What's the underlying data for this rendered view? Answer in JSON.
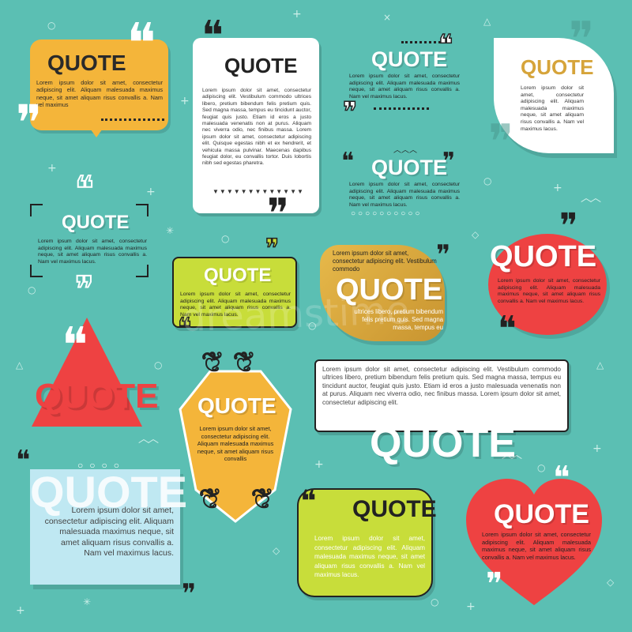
{
  "colors": {
    "background": "#5bbfb3",
    "orange": "#f4b53a",
    "lime": "#c8dd3a",
    "red": "#ee4242",
    "gold": "#d9a93a",
    "white": "#ffffff",
    "light_blue": "#bfe8f2",
    "dark": "#262626"
  },
  "watermark": "dreamstime",
  "boxes": [
    {
      "id": "orange-speech",
      "title": "QUOTE",
      "body": "Lorem ipsum dolor sit amet, consectetur adipiscing elit. Aliquam malesuada maximus neque, sit amet aliquam risus convallis a. Nam vel maximus"
    },
    {
      "id": "white-card",
      "title": "QUOTE",
      "body": "Lorem ipsum dolor sit amet, consectetur adipiscing elit. Vestibulum commodo ultrices libero, pretium bibendum felis pretium quis. Sed magna massa, tempus eu tincidunt auctor, feugiat quis justo. Etiam id eros a justo malesuada venenatis non at purus. Aliquam nec viverra odio, nec finibus massa. Lorem ipsum dolor sit amet, consectetur adipiscing elit. Quisque egestas nibh et ex hendrerit, et vehicula massa pulvinar. Maecenas dapibus feugiat dolor, eu convallis tortor. Duis lobortis nibh sed egestas pharetra."
    },
    {
      "id": "outline-top",
      "title": "QUOTE",
      "body": "Lorem ipsum dolor sit amet, consectetur adipiscing elit. Aliquam malesuada maximus neque, sit amet aliquam risus convallis a. Nam vel maximus lacus."
    },
    {
      "id": "leaf-card",
      "title": "QUOTE",
      "body": "Lorem ipsum dolor sit amet, consectetur adipiscing elit. Aliquam malesuada maximus neque, sit amet aliquam risus convallis a. Nam vel maximus lacus."
    },
    {
      "id": "bracket-left",
      "title": "QUOTE",
      "body": "Lorem ipsum dolor sit amet, consectetur adipiscing elit. Aliquam malesuada maximus neque, sit amet aliquam risus convallis a. Nam vel maximus lacus."
    },
    {
      "id": "outline-mid",
      "title": "QUOTE",
      "body": "Lorem ipsum dolor sit amet, consectetur adipiscing elit. Aliquam malesuada maximus neque, sit amet aliquam risus convallis a. Nam vel maximus lacus."
    },
    {
      "id": "lime-rect",
      "title": "QUOTE",
      "body": "Lorem ipsum dolor sit amet, consectetur adipiscing elit. Aliquam malesuada maximus neque, sit amet aliquam risus convallis a. Nam vel maximus lacus."
    },
    {
      "id": "gold-blob",
      "title": "QUOTE",
      "lead": "Lorem ipsum dolor sit amet, consectetur adipiscing elit. Vestibulum commodo",
      "body": "ultrices libero, pretium bibendum felis pretium quis. Sed magna massa, tempus eu"
    },
    {
      "id": "red-bubble",
      "title": "QUOTE",
      "body": "Lorem ipsum dolor sit amet, consectetur adipiscing elit. Aliquam malesuada maximus neque, sit amet aliquam risus convallis a. Nam vel maximus lacus."
    },
    {
      "id": "red-triangle",
      "title": "QUOTE"
    },
    {
      "id": "orange-shield",
      "title": "QUOTE",
      "body": "Lorem ipsum dolor sit amet, consectetur adipiscing elit. Aliquam malesuada maximus neque, sit amet aliquam risus convallis"
    },
    {
      "id": "wide-white",
      "title": "QUOTE",
      "body": "Lorem ipsum dolor sit amet, consectetur adipiscing elit. Vestibulum commodo ultrices libero, pretium bibendum felis pretium quis. Sed magna massa, tempus eu tincidunt auctor, feugiat quis justo. Etiam id eros a justo malesuada venenatis non at purus. Aliquam nec viverra odio, nec finibus massa. Lorem ipsum dolor sit amet, consectetur adipiscing elit."
    },
    {
      "id": "blue-paper",
      "title": "QUOTE",
      "body": "Lorem ipsum dolor sit amet, consectetur adipiscing elit. Aliquam malesuada maximus neque, sit amet aliquam risus convallis a. Nam vel maximus lacus."
    },
    {
      "id": "lime-notch",
      "title": "QUOTE",
      "body": "Lorem ipsum dolor sit amet, consectetur adipiscing elit. Aliquam malesuada maximus neque, sit amet aliquam risus convallis a. Nam vel maximus lacus."
    },
    {
      "id": "red-heart",
      "title": "QUOTE",
      "body": "Lorem ipsum dolor sit amet, consectetur adipiscing elit. Aliquam malesuada maximus neque, sit amet aliquam risus convallis a. Nam vel maximus lacus."
    }
  ]
}
